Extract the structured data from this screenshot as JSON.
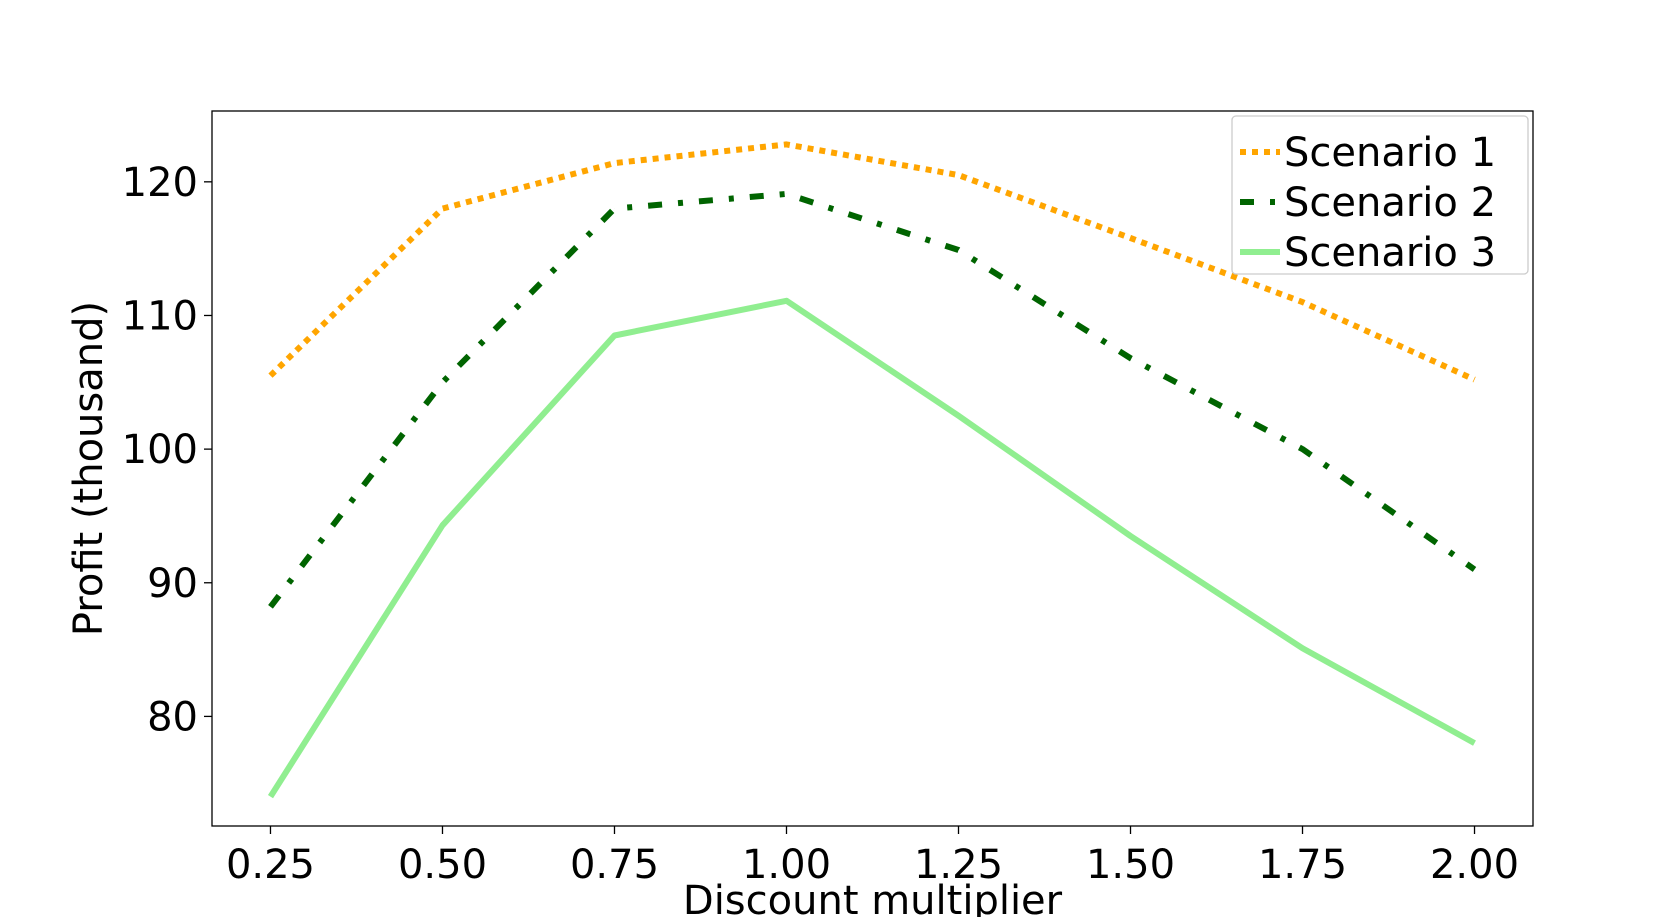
{
  "chart_data": {
    "type": "line",
    "title": "",
    "xlabel": "Discount multiplier",
    "ylabel": "Profit (thousand)",
    "x": [
      0.25,
      0.5,
      0.75,
      1.0,
      1.25,
      1.5,
      1.75,
      2.0
    ],
    "x_tick_labels": [
      "0.25",
      "0.50",
      "0.75",
      "1.00",
      "1.25",
      "1.50",
      "1.75",
      "2.00"
    ],
    "y_ticks": [
      80,
      90,
      100,
      110,
      120
    ],
    "y_tick_labels": [
      "80",
      "90",
      "100",
      "110",
      "120"
    ],
    "xlim": [
      0.165,
      2.085
    ],
    "ylim": [
      71.8,
      125.3
    ],
    "grid": false,
    "legend_position": "top-right",
    "series": [
      {
        "name": "Scenario 1",
        "color": "#FFA500",
        "style": "dotted",
        "values": [
          105.5,
          118.0,
          121.4,
          122.8,
          120.5,
          115.8,
          111.0,
          105.2
        ]
      },
      {
        "name": "Scenario 2",
        "color": "#006400",
        "style": "dashdot",
        "values": [
          88.2,
          105.0,
          118.0,
          119.1,
          114.9,
          106.8,
          100.0,
          91.0
        ]
      },
      {
        "name": "Scenario 3",
        "color": "#90EE90",
        "style": "solid",
        "values": [
          74.0,
          94.3,
          108.5,
          111.1,
          102.5,
          93.5,
          85.1,
          78.0
        ]
      }
    ]
  }
}
